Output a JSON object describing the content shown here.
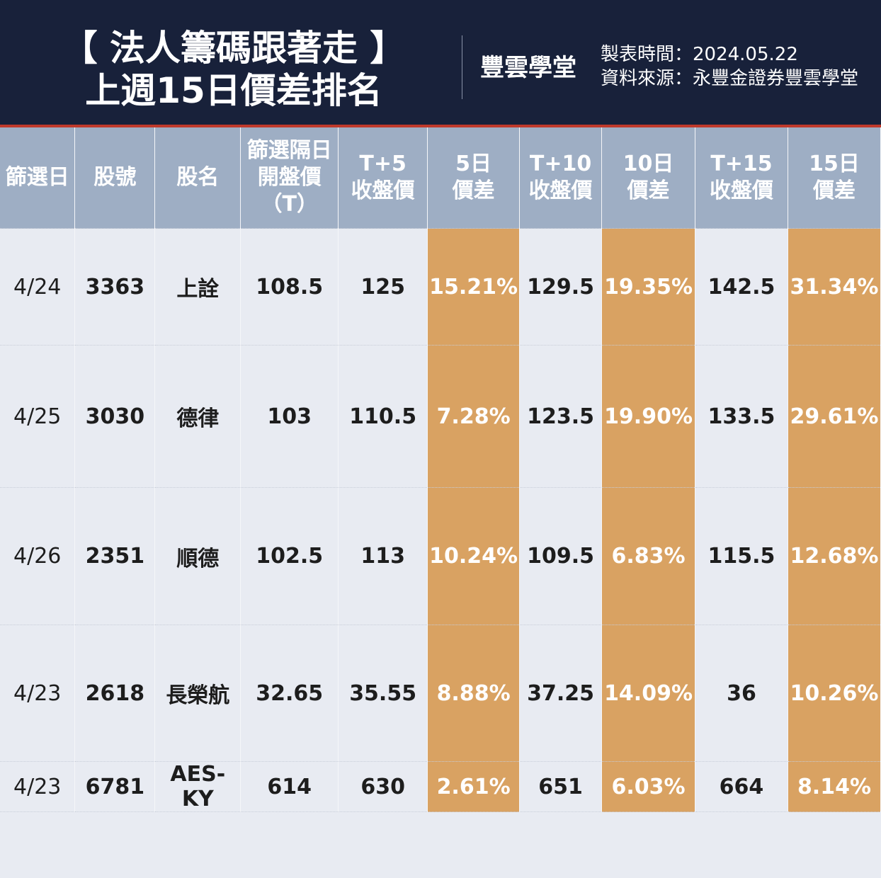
{
  "header": {
    "title": [
      "【 法人籌碼跟著走 】",
      "上週15日價差排名"
    ],
    "logo": "豐雲學堂",
    "meta": [
      "製表時間：2024.05.22",
      "資料來源：永豐金證券豐雲學堂"
    ]
  },
  "table": {
    "headers": [
      [
        "篩選日"
      ],
      [
        "股號"
      ],
      [
        "股名"
      ],
      [
        "篩選隔日",
        "開盤價",
        "（T）"
      ],
      [
        "T+5",
        "收盤價"
      ],
      [
        "5日",
        "價差"
      ],
      [
        "T+10",
        "收盤價"
      ],
      [
        "10日",
        "價差"
      ],
      [
        "T+15",
        "收盤價"
      ],
      [
        "15日",
        "價差"
      ]
    ],
    "rows": [
      [
        "4/24",
        "3363",
        "上詮",
        "108.5",
        "125",
        "15.21%",
        "129.5",
        "19.35%",
        "142.5",
        "31.34%"
      ],
      [
        "4/25",
        "3030",
        "德律",
        "103",
        "110.5",
        "7.28%",
        "123.5",
        "19.90%",
        "133.5",
        "29.61%"
      ],
      [
        "4/26",
        "2351",
        "順德",
        "102.5",
        "113",
        "10.24%",
        "109.5",
        "6.83%",
        "115.5",
        "12.68%"
      ],
      [
        "4/23",
        "2618",
        "長榮航",
        "32.65",
        "35.55",
        "8.88%",
        "37.25",
        "14.09%",
        "36",
        "10.26%"
      ],
      [
        "4/23",
        "6781",
        "AES-KY",
        "614",
        "630",
        "2.61%",
        "651",
        "6.03%",
        "664",
        "8.14%"
      ]
    ]
  }
}
